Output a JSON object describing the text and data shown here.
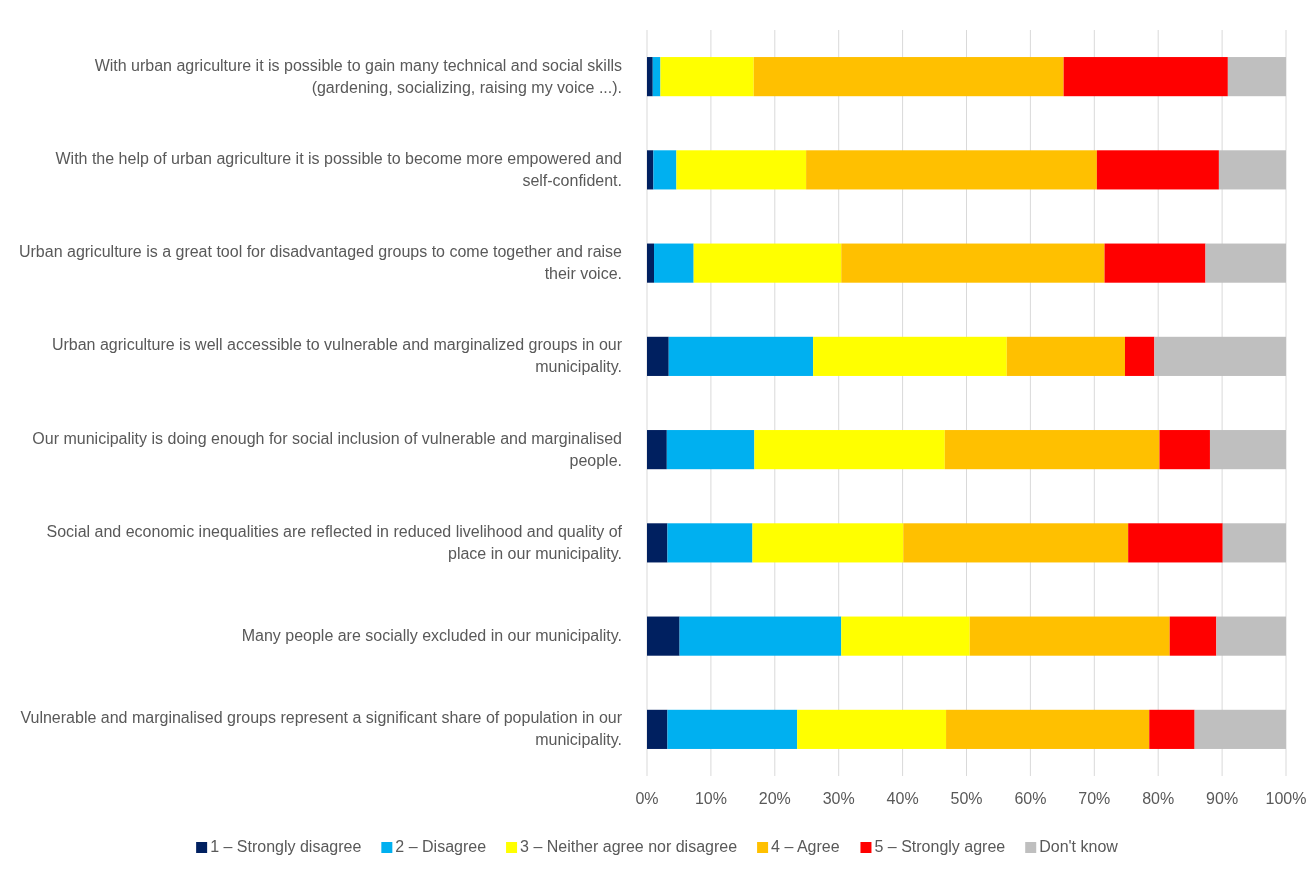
{
  "chart_data": {
    "type": "bar",
    "orientation": "horizontal",
    "stacked": true,
    "categories": [
      "With urban agriculture it is possible to gain many technical and social skills (gardening, socializing, raising my voice ...).",
      "With the help of urban agriculture it is possible to become more empowered and self-confident.",
      "Urban agriculture is a great tool for disadvantaged groups to come together and raise their voice.",
      "Urban agriculture is well accessible to vulnerable and marginalized groups in our municipality.",
      "Our municipality is doing enough for social inclusion of vulnerable and marginalised people.",
      "Social and economic inequalities are reflected in reduced livelihood and quality of place in our municipality.",
      "Many people are socially excluded in our municipality.",
      "Vulnerable and marginalised groups represent a significant share of population in our municipality."
    ],
    "series": [
      {
        "name": "1 – Strongly disagree",
        "color": "#002060",
        "values": [
          0.9,
          1.0,
          1.1,
          3.4,
          3.1,
          3.2,
          5.1,
          3.2
        ]
      },
      {
        "name": "2 – Disagree",
        "color": "#00b0f0",
        "values": [
          1.2,
          3.6,
          6.2,
          22.6,
          13.7,
          13.3,
          25.3,
          20.3
        ]
      },
      {
        "name": "3 – Neither agree nor disagree",
        "color": "#ffff00",
        "values": [
          14.6,
          20.3,
          23.1,
          30.3,
          29.8,
          23.6,
          20.1,
          23.3
        ]
      },
      {
        "name": "4 – Agree",
        "color": "#ffc000",
        "values": [
          48.5,
          45.5,
          41.2,
          18.5,
          33.6,
          35.2,
          31.3,
          31.8
        ]
      },
      {
        "name": "5 – Strongly agree",
        "color": "#ff0000",
        "values": [
          25.7,
          19.1,
          15.8,
          4.6,
          7.9,
          14.8,
          7.3,
          7.1
        ]
      },
      {
        "name": "Don't know",
        "color": "#bfbfbf",
        "values": [
          9.1,
          10.5,
          12.6,
          20.6,
          11.9,
          9.9,
          10.9,
          14.3
        ]
      }
    ],
    "xlim": [
      0,
      100
    ],
    "xticks": [
      {
        "value": 0,
        "label": "0%"
      },
      {
        "value": 10,
        "label": "10%"
      },
      {
        "value": 20,
        "label": "20%"
      },
      {
        "value": 30,
        "label": "30%"
      },
      {
        "value": 40,
        "label": "40%"
      },
      {
        "value": 50,
        "label": "50%"
      },
      {
        "value": 60,
        "label": "60%"
      },
      {
        "value": 70,
        "label": "70%"
      },
      {
        "value": 80,
        "label": "80%"
      },
      {
        "value": 90,
        "label": "90%"
      },
      {
        "value": 100,
        "label": "100%"
      }
    ],
    "grid": "x",
    "legend": "bottom"
  }
}
